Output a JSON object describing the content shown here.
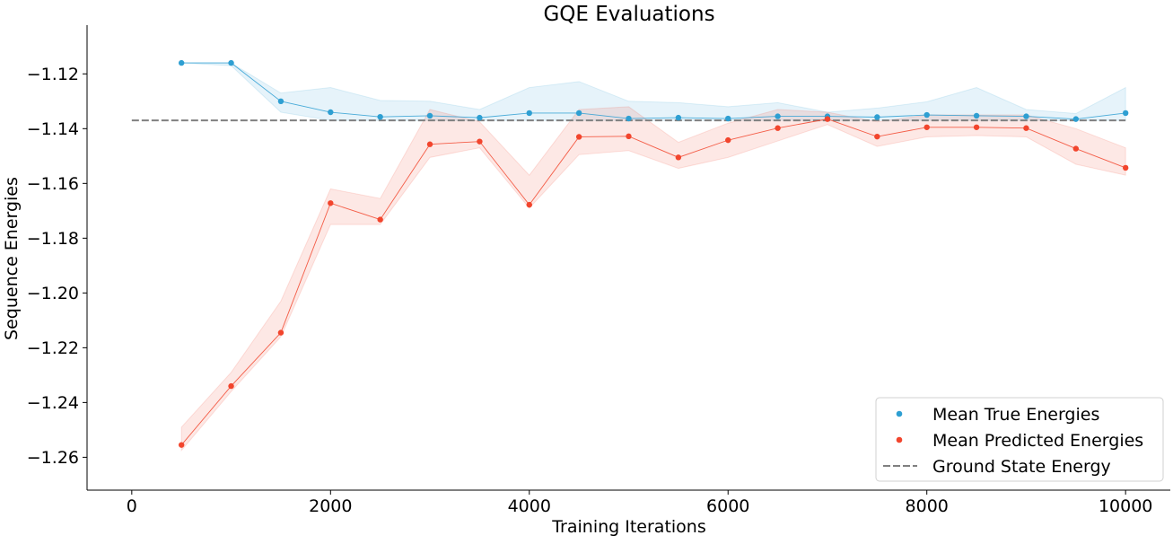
{
  "chart_data": {
    "type": "line",
    "title": "GQE Evaluations",
    "xlabel": "Training Iterations",
    "ylabel": "Sequence Energies",
    "xlim": [
      -450,
      10450
    ],
    "ylim": [
      -1.272,
      -1.1022
    ],
    "xticks": [
      0,
      2000,
      4000,
      6000,
      8000,
      10000
    ],
    "xtick_labels": [
      "0",
      "2000",
      "4000",
      "6000",
      "8000",
      "10000"
    ],
    "yticks": [
      -1.26,
      -1.24,
      -1.22,
      -1.2,
      -1.18,
      -1.16,
      -1.14,
      -1.12
    ],
    "ytick_labels": [
      "−1.26",
      "−1.24",
      "−1.22",
      "−1.20",
      "−1.18",
      "−1.16",
      "−1.14",
      "−1.12"
    ],
    "grid": false,
    "legend_position": "lower-right",
    "x": [
      500,
      1000,
      1500,
      2000,
      2500,
      3000,
      3500,
      4000,
      4500,
      5000,
      5500,
      6000,
      6500,
      7000,
      7500,
      8000,
      8500,
      9000,
      9500,
      10000
    ],
    "series": [
      {
        "name": "Mean True Energies",
        "color": "#2e9fd2",
        "values": [
          -1.116,
          -1.116,
          -1.13,
          -1.134,
          -1.1357,
          -1.1353,
          -1.136,
          -1.1343,
          -1.1343,
          -1.1363,
          -1.136,
          -1.1363,
          -1.1355,
          -1.1355,
          -1.1358,
          -1.135,
          -1.1353,
          -1.1355,
          -1.1365,
          -1.1343
        ],
        "upper": [
          -1.116,
          -1.116,
          -1.127,
          -1.125,
          -1.1297,
          -1.13,
          -1.133,
          -1.125,
          -1.1228,
          -1.13,
          -1.1305,
          -1.132,
          -1.1305,
          -1.134,
          -1.1325,
          -1.1302,
          -1.125,
          -1.133,
          -1.1345,
          -1.125
        ],
        "lower": [
          -1.116,
          -1.117,
          -1.134,
          -1.137,
          -1.137,
          -1.137,
          -1.137,
          -1.137,
          -1.137,
          -1.137,
          -1.137,
          -1.137,
          -1.137,
          -1.137,
          -1.137,
          -1.137,
          -1.137,
          -1.137,
          -1.137,
          -1.137
        ]
      },
      {
        "name": "Mean Predicted Energies",
        "color": "#f2452d",
        "values": [
          -1.2555,
          -1.234,
          -1.2145,
          -1.1672,
          -1.1732,
          -1.1457,
          -1.1447,
          -1.1678,
          -1.143,
          -1.1428,
          -1.1505,
          -1.1442,
          -1.1398,
          -1.1365,
          -1.1429,
          -1.1395,
          -1.1395,
          -1.1398,
          -1.1473,
          -1.1543
        ],
        "upper": [
          -1.249,
          -1.229,
          -1.203,
          -1.162,
          -1.1655,
          -1.133,
          -1.1375,
          -1.157,
          -1.133,
          -1.132,
          -1.145,
          -1.138,
          -1.133,
          -1.134,
          -1.1375,
          -1.135,
          -1.135,
          -1.135,
          -1.14,
          -1.147
        ],
        "lower": [
          -1.2575,
          -1.236,
          -1.216,
          -1.175,
          -1.175,
          -1.1505,
          -1.147,
          -1.169,
          -1.1495,
          -1.148,
          -1.1545,
          -1.1505,
          -1.1445,
          -1.1385,
          -1.1465,
          -1.143,
          -1.1425,
          -1.143,
          -1.153,
          -1.157
        ]
      }
    ],
    "reference_line": {
      "name": "Ground State Energy",
      "y": -1.137,
      "x_range": [
        0,
        10000
      ],
      "color": "#808080",
      "style": "dashed"
    }
  }
}
